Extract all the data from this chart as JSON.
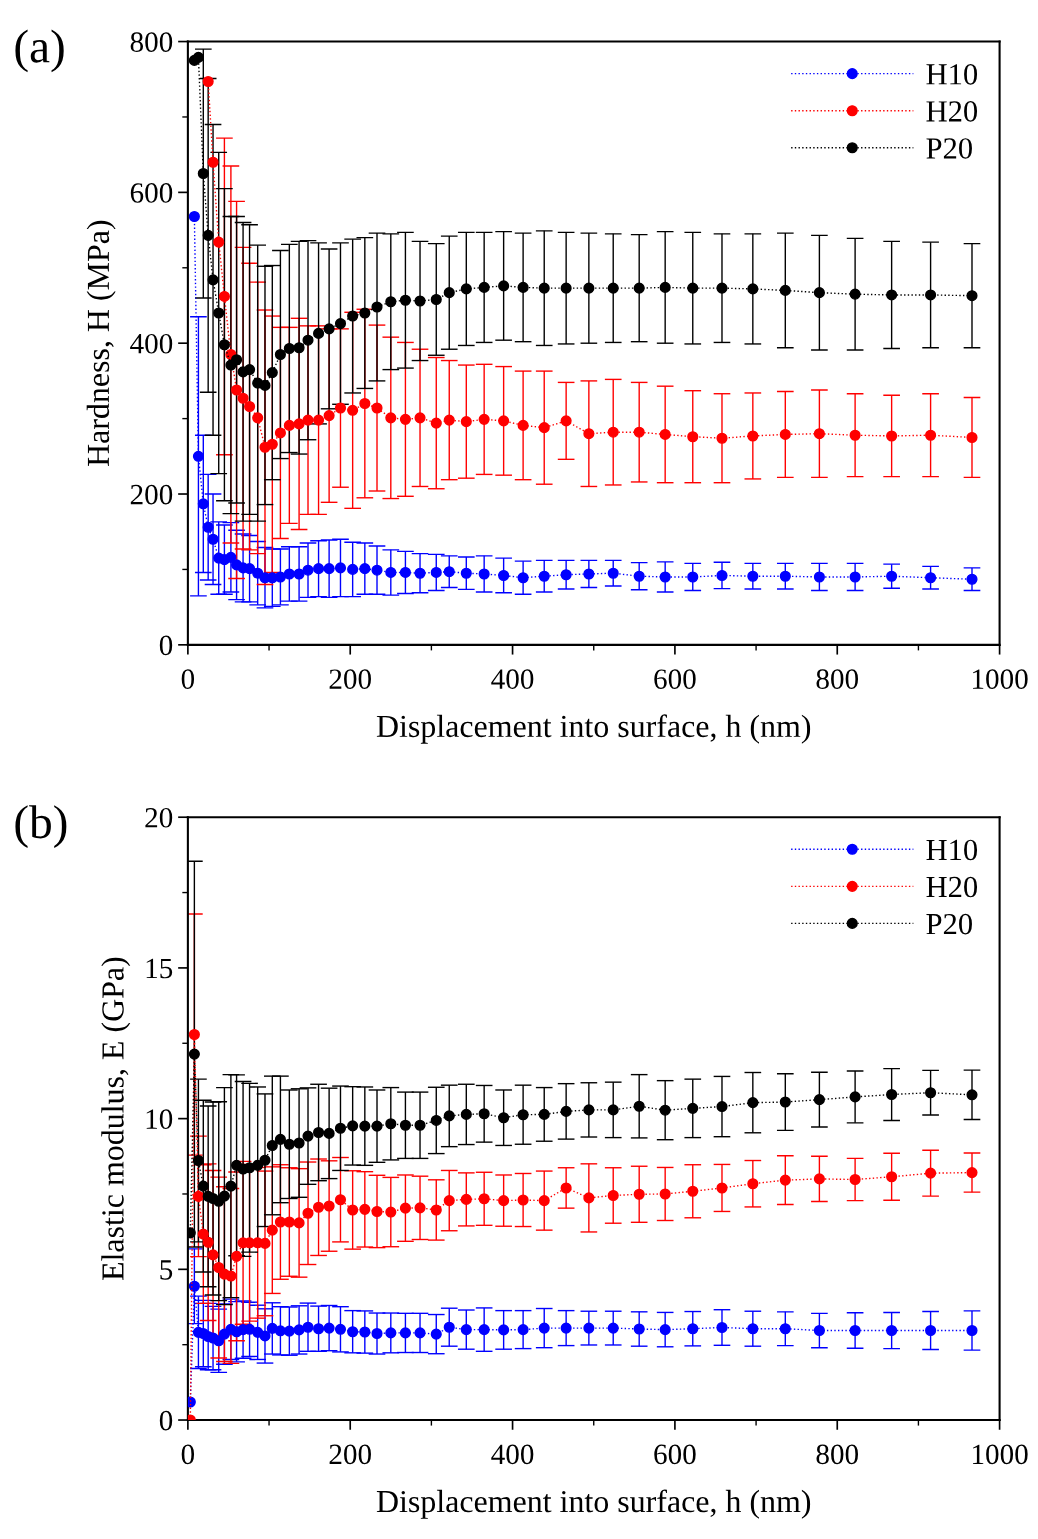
{
  "chart_data": [
    {
      "type": "line",
      "title": "(a)",
      "xlabel": "Displacement into surface, h (nm)",
      "ylabel": "Hardness, H (MPa)",
      "xlim": [
        0,
        1000
      ],
      "xticks": [
        0,
        200,
        400,
        600,
        800,
        1000
      ],
      "ylim": [
        0,
        800
      ],
      "yticks": [
        0,
        200,
        400,
        600,
        800
      ],
      "grid": false,
      "legend": "top right",
      "marker": "circle",
      "line_style": "dotted",
      "x": [
        8,
        13,
        19,
        25,
        31,
        38,
        45,
        53,
        60,
        68,
        76,
        86,
        95,
        104,
        114,
        125,
        137,
        148,
        161,
        174,
        188,
        203,
        218,
        233,
        250,
        268,
        286,
        306,
        322,
        343,
        365,
        389,
        413,
        439,
        466,
        494,
        524,
        556,
        588,
        622,
        658,
        696,
        736,
        778,
        822,
        867,
        915,
        966
      ],
      "series": [
        {
          "name": "H10",
          "color": "#0000ff",
          "values": [
            568,
            250,
            187,
            156,
            140,
            115,
            113,
            116,
            106,
            102,
            101,
            95,
            89,
            89,
            90,
            94,
            94,
            99,
            101,
            101,
            102,
            100,
            101,
            99,
            96,
            96,
            95,
            96,
            97,
            95,
            94,
            92,
            89,
            91,
            93,
            94,
            95,
            91,
            90,
            90,
            92,
            91,
            91,
            90,
            90,
            91,
            89,
            87
          ],
          "errors": [
            null,
            185,
            91,
            70,
            60,
            48,
            46,
            46,
            46,
            45,
            44,
            42,
            40,
            38,
            37,
            36,
            36,
            36,
            37,
            38,
            38,
            36,
            34,
            32,
            30,
            28,
            26,
            24,
            21,
            21.5,
            24,
            23,
            22,
            21,
            19,
            18,
            17,
            18,
            20,
            18,
            17.5,
            17,
            17,
            18,
            18,
            16,
            15,
            15
          ]
        },
        {
          "name": "H20",
          "color": "#ff0000",
          "values": [
            null,
            null,
            null,
            747,
            640,
            534,
            462,
            385,
            338,
            327,
            316,
            301,
            262,
            266,
            281,
            291,
            293,
            298,
            298,
            304,
            314,
            311,
            320,
            314,
            301,
            299,
            301,
            294,
            298,
            296,
            299,
            297,
            291,
            288,
            297,
            280,
            282,
            282,
            279,
            276,
            274,
            277,
            279,
            280,
            278,
            277,
            278,
            275
          ],
          "errors": [
            null,
            null,
            null,
            null,
            null,
            null,
            210,
            250,
            250,
            200,
            190,
            180,
            182,
            170,
            140,
            130,
            140,
            125,
            125,
            115,
            105,
            130,
            125,
            110,
            107,
            102,
            91,
            87,
            79,
            75,
            73,
            72,
            72,
            75,
            51,
            70,
            70,
            66,
            64,
            61,
            59,
            57,
            57,
            58,
            55,
            54,
            55,
            53
          ]
        },
        {
          "name": "P20",
          "color": "#000000",
          "values": [
            775,
            779,
            625,
            543,
            484,
            440,
            398,
            371,
            378,
            362,
            365,
            347,
            344,
            361,
            385,
            393,
            394,
            404,
            413,
            419,
            426,
            436,
            440,
            448,
            455,
            457,
            456,
            458,
            467,
            472,
            474,
            476,
            474,
            473,
            473,
            473,
            473,
            473,
            474,
            473,
            473,
            472,
            470,
            467,
            465,
            464,
            464,
            463
          ],
          "errors": [
            null,
            null,
            165,
            208,
            206,
            213,
            207,
            197,
            190,
            198,
            192,
            183,
            158,
            142,
            138,
            138,
            141,
            132,
            120,
            106,
            107,
            102,
            100,
            98,
            90,
            90,
            79,
            74,
            75,
            75,
            73,
            72,
            72,
            76,
            74,
            73,
            72,
            71,
            74,
            74,
            72,
            73,
            76,
            76,
            74,
            71,
            70,
            69
          ]
        }
      ]
    },
    {
      "type": "line",
      "title": "(b)",
      "xlabel": "Displacement into surface, h (nm)",
      "ylabel": "Elastic modulus, E (GPa)",
      "xlim": [
        0,
        1000
      ],
      "xticks": [
        0,
        200,
        400,
        600,
        800,
        1000
      ],
      "ylim": [
        0,
        20
      ],
      "yticks": [
        0,
        5,
        10,
        15,
        20
      ],
      "grid": false,
      "legend": "top right",
      "marker": "circle",
      "line_style": "dotted",
      "x": [
        3,
        8,
        13,
        19,
        25,
        31,
        38,
        45,
        53,
        60,
        68,
        76,
        86,
        95,
        104,
        114,
        125,
        137,
        148,
        161,
        174,
        188,
        203,
        218,
        233,
        250,
        268,
        286,
        306,
        322,
        343,
        365,
        389,
        413,
        439,
        466,
        494,
        524,
        556,
        588,
        622,
        658,
        696,
        736,
        778,
        822,
        867,
        915,
        966
      ],
      "series": [
        {
          "name": "H10",
          "color": "#0000ff",
          "values": [
            0.6,
            4.44,
            2.91,
            2.87,
            2.77,
            2.72,
            2.63,
            2.85,
            3.01,
            2.93,
            3.0,
            3.01,
            2.91,
            2.79,
            3.04,
            2.96,
            2.95,
            2.99,
            3.08,
            3.03,
            3.05,
            3.01,
            2.93,
            2.92,
            2.87,
            2.89,
            2.89,
            2.89,
            2.85,
            3.08,
            3.0,
            3.0,
            2.99,
            3.0,
            3.05,
            3.05,
            3.05,
            3.05,
            3.02,
            3.0,
            3.03,
            3.07,
            3.03,
            3.03,
            2.97,
            2.97,
            2.97,
            2.97,
            2.97
          ],
          "errors": [
            null,
            1.24,
            1.2,
            1.1,
            1.1,
            1.05,
            1.05,
            1.0,
            1.0,
            1.0,
            0.95,
            0.9,
            0.9,
            0.9,
            0.85,
            0.8,
            0.8,
            0.8,
            0.8,
            0.75,
            0.75,
            0.75,
            0.7,
            0.7,
            0.68,
            0.66,
            0.65,
            0.65,
            0.65,
            0.63,
            0.65,
            0.72,
            0.64,
            0.63,
            0.65,
            0.58,
            0.56,
            0.56,
            0.57,
            0.57,
            0.57,
            0.59,
            0.58,
            0.56,
            0.57,
            0.59,
            0.6,
            0.63,
            0.65
          ]
        },
        {
          "name": "H20",
          "color": "#ff0000",
          "values": [
            0.0,
            12.79,
            7.42,
            6.17,
            5.9,
            5.48,
            5.06,
            4.84,
            4.78,
            5.43,
            5.88,
            5.88,
            5.88,
            5.86,
            6.3,
            6.57,
            6.57,
            6.54,
            6.86,
            7.06,
            7.1,
            7.31,
            6.97,
            6.99,
            6.92,
            6.9,
            7.03,
            7.04,
            6.97,
            7.28,
            7.32,
            7.34,
            7.28,
            7.3,
            7.28,
            7.7,
            7.37,
            7.45,
            7.49,
            7.5,
            7.59,
            7.7,
            7.84,
            7.96,
            8.0,
            7.98,
            8.07,
            8.19,
            8.21
          ],
          "errors": [
            null,
            4.0,
            2.0,
            2.3,
            2.6,
            2.8,
            3.0,
            2.9,
            2.9,
            2.8,
            2.7,
            2.6,
            2.5,
            2.4,
            2.1,
            1.9,
            1.8,
            1.8,
            1.7,
            1.6,
            1.5,
            1.4,
            1.3,
            1.25,
            1.2,
            1.15,
            1.1,
            1.05,
            1.0,
            1.0,
            0.88,
            0.88,
            0.85,
            0.88,
            0.98,
            0.67,
            1.13,
            0.92,
            0.93,
            0.88,
            0.88,
            0.78,
            0.77,
            0.81,
            0.75,
            0.7,
            0.78,
            0.76,
            0.65
          ]
        },
        {
          "name": "P20",
          "color": "#000000",
          "values": [
            6.21,
            12.14,
            8.61,
            7.76,
            7.42,
            7.35,
            7.26,
            7.43,
            7.76,
            8.45,
            8.33,
            8.37,
            8.45,
            8.62,
            9.11,
            9.31,
            9.15,
            9.19,
            9.42,
            9.54,
            9.51,
            9.68,
            9.76,
            9.75,
            9.75,
            9.83,
            9.78,
            9.78,
            9.94,
            10.09,
            10.14,
            10.16,
            10.03,
            10.13,
            10.14,
            10.24,
            10.29,
            10.29,
            10.41,
            10.28,
            10.34,
            10.4,
            10.53,
            10.55,
            10.63,
            10.72,
            10.8,
            10.86,
            10.79
          ],
          "errors": [
            null,
            6.4,
            2.7,
            2.85,
            3.0,
            3.2,
            3.3,
            3.6,
            3.7,
            3.0,
            2.9,
            2.8,
            2.6,
            2.2,
            2.3,
            2.1,
            1.8,
            1.8,
            1.6,
            1.6,
            1.5,
            1.4,
            1.3,
            1.3,
            1.2,
            1.2,
            1.1,
            1.1,
            1.1,
            1.02,
            1.0,
            0.94,
            0.92,
            0.98,
            0.89,
            0.92,
            0.9,
            0.92,
            1.05,
            0.98,
            0.97,
            1.0,
            1.0,
            0.94,
            0.91,
            0.86,
            0.86,
            0.74,
            0.82
          ]
        }
      ]
    }
  ]
}
